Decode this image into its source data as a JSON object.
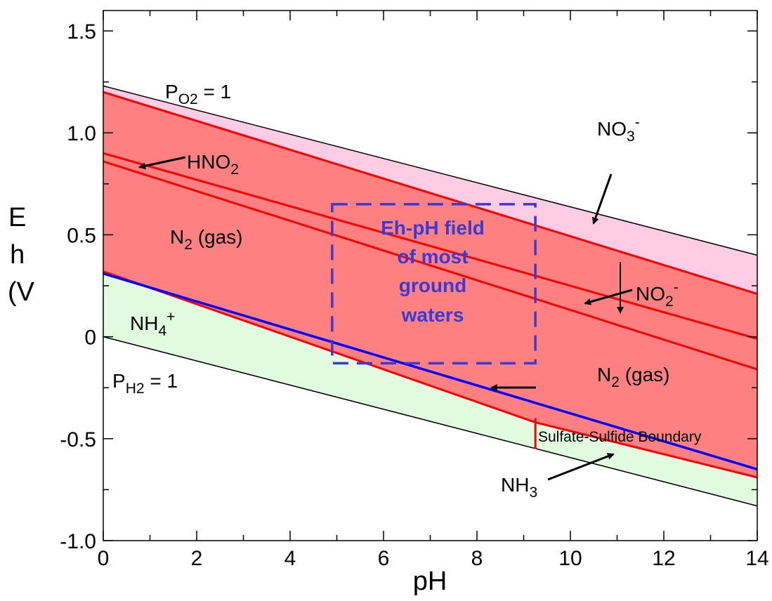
{
  "chart_data": {
    "type": "area",
    "xlabel": "pH",
    "ylabel": "Eh (V)",
    "ylabel_visible": "E h (V",
    "xlim": [
      0,
      14
    ],
    "ylim": [
      -1.0,
      1.6
    ],
    "x_ticks": [
      0,
      2,
      4,
      6,
      8,
      10,
      12,
      14
    ],
    "x_tick_labels": [
      "0",
      "2",
      "4",
      "6",
      "8",
      "10",
      "12",
      "14"
    ],
    "y_ticks": [
      -1.0,
      -0.5,
      0,
      0.5,
      1.0,
      1.5
    ],
    "y_tick_labels": [
      "-1.0",
      "-0.5",
      "0",
      "0.5",
      "1.0",
      "1.5"
    ],
    "grid": false,
    "colors": {
      "nitrate_region": "#ffcce6",
      "n2_region": "#ff8080",
      "ammonium_region": "#e0fbe0",
      "boundary_lines": "#ff0000",
      "water_limits": "#000000",
      "sulfate_sulfide": "#0000ff",
      "groundwater_box": "#3a3ad6"
    },
    "series": [
      {
        "name": "P_O2 = 1",
        "x": [
          0,
          14
        ],
        "y": [
          1.23,
          0.4
        ]
      },
      {
        "name": "P_H2 = 1",
        "x": [
          0,
          14
        ],
        "y": [
          0.0,
          -0.83
        ]
      },
      {
        "name": "NO3- / N2",
        "x": [
          0,
          14
        ],
        "y": [
          1.2,
          0.21
        ]
      },
      {
        "name": "HNO2 / NO2- upper",
        "x": [
          0,
          14
        ],
        "y": [
          0.9,
          -0.01
        ]
      },
      {
        "name": "HNO2 / NO2- lower",
        "x": [
          0,
          14
        ],
        "y": [
          0.86,
          -0.16
        ]
      },
      {
        "name": "N2 / NH4+ / NH3",
        "x": [
          0,
          9.25,
          14
        ],
        "y": [
          0.32,
          -0.42,
          -0.69
        ]
      },
      {
        "name": "Sulfate-Sulfide Boundary",
        "x": [
          0,
          14
        ],
        "y": [
          0.31,
          -0.65
        ]
      }
    ],
    "vertical_segments": [
      {
        "x": 9.25,
        "y1": -0.4,
        "y2": -0.55
      }
    ],
    "groundwater_box": {
      "x": [
        4.9,
        9.25
      ],
      "y": [
        -0.13,
        0.65
      ]
    },
    "annotations": {
      "po2_main": "P",
      "po2_sub": "O2",
      "po2_rest": " = 1",
      "ph2_main": "P",
      "ph2_sub": "H2",
      "ph2_rest": " = 1",
      "hno2_main": "HNO",
      "hno2_sub": "2",
      "no3_main": "NO",
      "no3_sub": "3",
      "no3_sup": "-",
      "no2_main": "NO",
      "no2_sub": "2",
      "no2_sup": "-",
      "n2_left_main": "N",
      "n2_left_sub": "2",
      "n2_left_rest": " (gas)",
      "n2_right_main": "N",
      "n2_right_sub": "2",
      "n2_right_rest": " (gas)",
      "nh4_main": "NH",
      "nh4_sub": "4",
      "nh4_sup": "+",
      "nh3_main": "NH",
      "nh3_sub": "3",
      "box_line1": "Eh-pH field",
      "box_line2": "of most",
      "box_line3": "ground",
      "box_line4": "waters",
      "sulfate_sulfide": "Sulfate-Sulfide Boundary"
    }
  }
}
